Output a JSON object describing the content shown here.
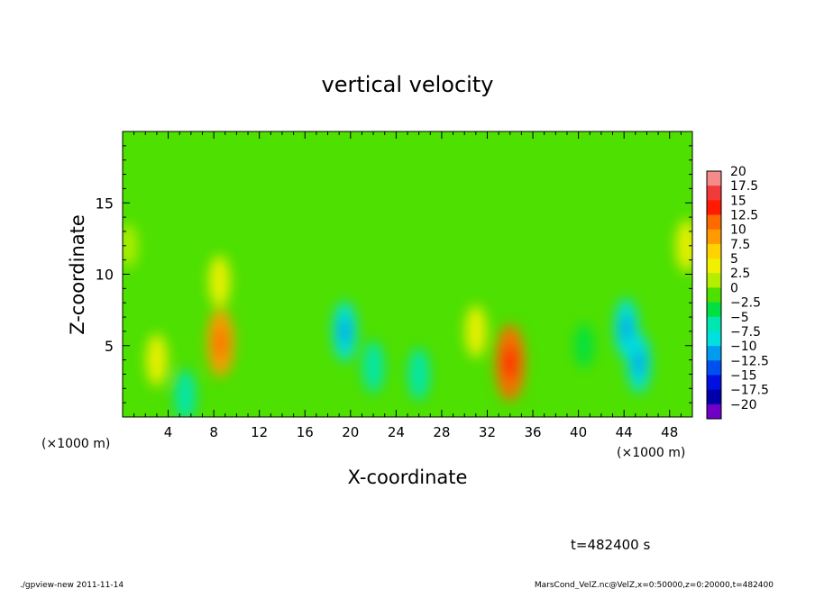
{
  "chart_data": {
    "type": "heatmap",
    "title": "vertical velocity",
    "xlabel": "X-coordinate",
    "ylabel": "Z-coordinate",
    "x_unit_left": "(×1000 m)",
    "x_unit_right": "(×1000 m)",
    "xlim": [
      0,
      50
    ],
    "ylim": [
      0,
      20
    ],
    "x_ticks": [
      "4",
      "8",
      "12",
      "16",
      "20",
      "24",
      "28",
      "32",
      "36",
      "40",
      "44",
      "48"
    ],
    "x_tick_values": [
      4,
      8,
      12,
      16,
      20,
      24,
      28,
      32,
      36,
      40,
      44,
      48
    ],
    "y_ticks": [
      "5",
      "10",
      "15"
    ],
    "y_tick_values": [
      5,
      10,
      15
    ],
    "colorbar": {
      "labels": [
        "20",
        "17.5",
        "15",
        "12.5",
        "10",
        "7.5",
        "5",
        "2.5",
        "0",
        "−2.5",
        "−5",
        "−7.5",
        "−10",
        "−12.5",
        "−15",
        "−17.5",
        "−20"
      ],
      "levels": [
        20,
        17.5,
        15,
        12.5,
        10,
        7.5,
        5,
        2.5,
        0,
        -2.5,
        -5,
        -7.5,
        -10,
        -12.5,
        -15,
        -17.5,
        -20
      ],
      "colors": [
        "#f58a8a",
        "#f23a3a",
        "#ff1a00",
        "#ff6a00",
        "#ff9a00",
        "#ffd200",
        "#f0f000",
        "#b4ee00",
        "#4ee000",
        "#00e040",
        "#00e6b0",
        "#00e0e0",
        "#009cf0",
        "#0050f0",
        "#0010e0",
        "#0000a8",
        "#6e00c8"
      ]
    },
    "features": [
      {
        "x": 8.6,
        "z": 5.2,
        "value": 10
      },
      {
        "x": 8.5,
        "z": 9.5,
        "value": 5
      },
      {
        "x": 3.0,
        "z": 4.0,
        "value": 5
      },
      {
        "x": 34.0,
        "z": 3.8,
        "value": 12.5
      },
      {
        "x": 31.0,
        "z": 6.0,
        "value": 5
      },
      {
        "x": 5.5,
        "z": 1.5,
        "value": -5
      },
      {
        "x": 19.5,
        "z": 6.0,
        "value": -7.5
      },
      {
        "x": 22.0,
        "z": 3.5,
        "value": -5
      },
      {
        "x": 26.0,
        "z": 3.0,
        "value": -5
      },
      {
        "x": 44.2,
        "z": 6.2,
        "value": -7.5
      },
      {
        "x": 45.3,
        "z": 3.8,
        "value": -7.5
      },
      {
        "x": 40.5,
        "z": 5.0,
        "value": -2.5
      },
      {
        "x": 49.5,
        "z": 12.0,
        "value": 5
      },
      {
        "x": 0.5,
        "z": 12.0,
        "value": 2.5
      }
    ],
    "time_label": "t=482400 s"
  },
  "footer": {
    "left": "./gpview-new  2011-11-14",
    "right": "MarsCond_VelZ.nc@VelZ,x=0:50000,z=0:20000,t=482400"
  }
}
